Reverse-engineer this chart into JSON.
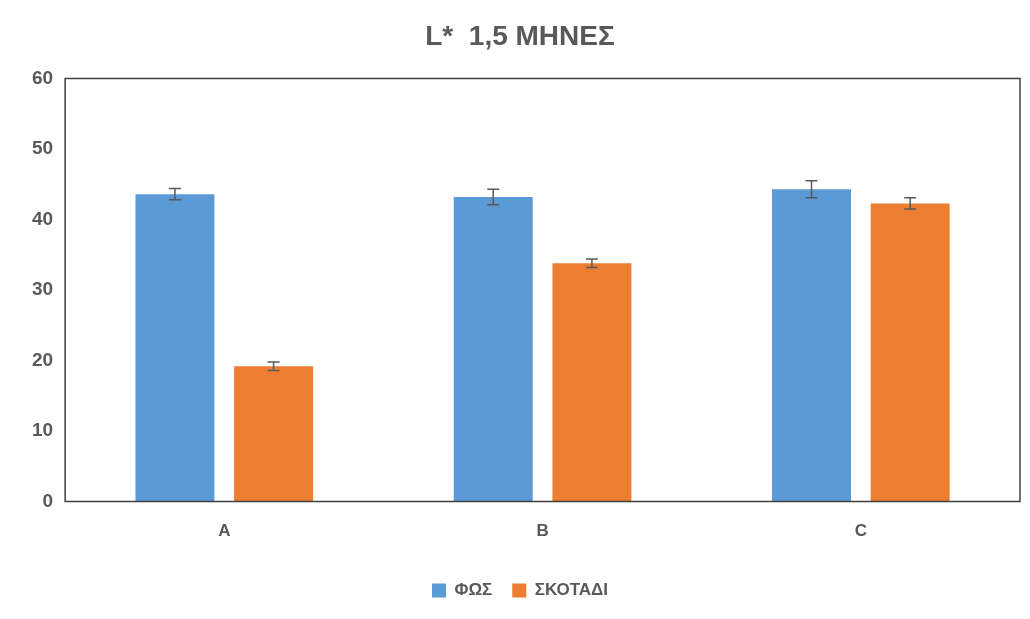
{
  "chart_data": {
    "type": "bar",
    "title": "L*  1,5 ΜΗΝΕΣ",
    "categories": [
      "A",
      "B",
      "C"
    ],
    "series": [
      {
        "name": "ΦΩΣ",
        "color": "#5b9bd5",
        "values": [
          43.6,
          43.2,
          44.3
        ],
        "errors": [
          0.8,
          1.1,
          1.2
        ]
      },
      {
        "name": "ΣΚΟΤΑΔΙ",
        "color": "#ed7d31",
        "values": [
          19.2,
          33.8,
          42.3
        ],
        "errors": [
          0.6,
          0.6,
          0.8
        ]
      }
    ],
    "ylim": [
      0,
      60
    ],
    "yticks": [
      0,
      10,
      20,
      30,
      40,
      50,
      60
    ],
    "grid": false,
    "legend": "bottom"
  }
}
